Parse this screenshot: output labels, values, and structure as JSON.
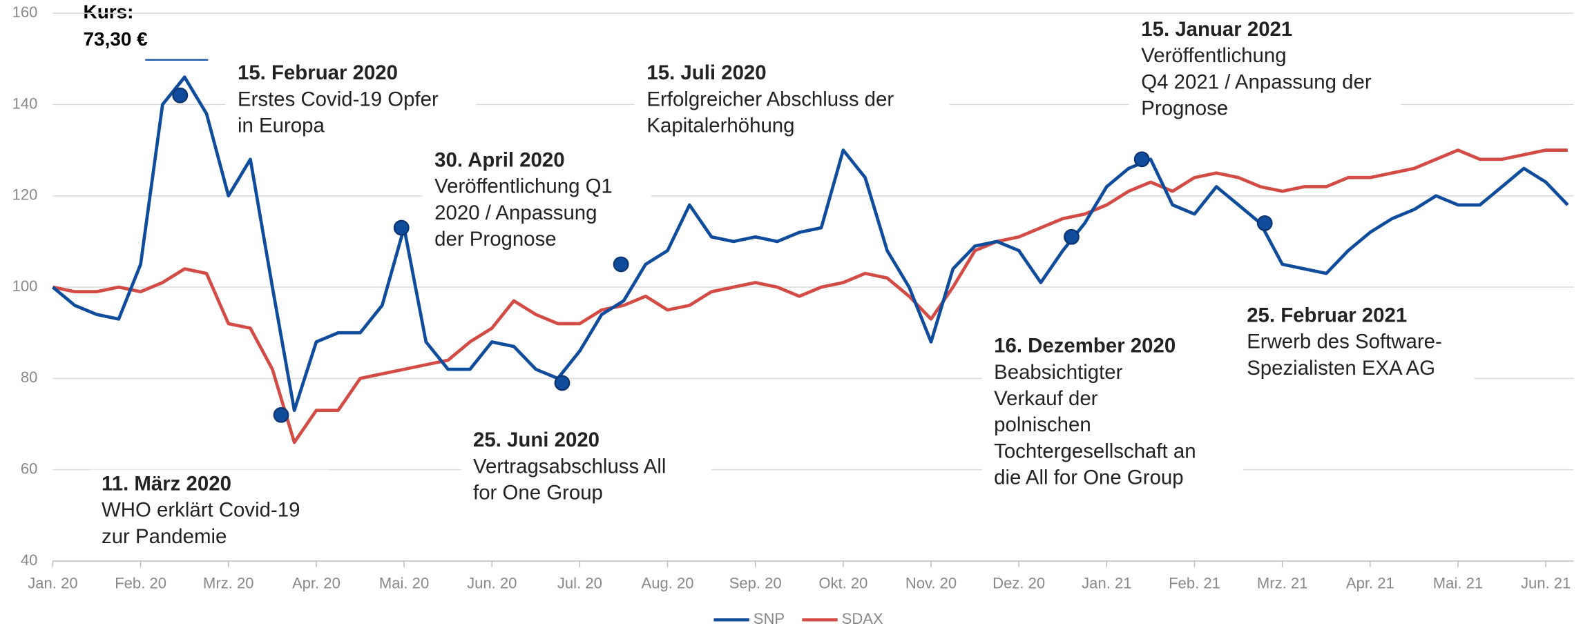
{
  "chart_data": {
    "type": "line",
    "title": "Kurs:",
    "subtitle": "73,30 €",
    "xlim": [
      0,
      17.33
    ],
    "xticks": [
      {
        "value": 0,
        "label": "Jan. 20"
      },
      {
        "value": 1,
        "label": "Feb. 20"
      },
      {
        "value": 2,
        "label": "Mrz. 20"
      },
      {
        "value": 3,
        "label": "Apr. 20"
      },
      {
        "value": 4,
        "label": "Mai. 20"
      },
      {
        "value": 5,
        "label": "Jun. 20"
      },
      {
        "value": 6,
        "label": "Jul. 20"
      },
      {
        "value": 7,
        "label": "Aug. 20"
      },
      {
        "value": 8,
        "label": "Sep. 20"
      },
      {
        "value": 9,
        "label": "Okt. 20"
      },
      {
        "value": 10,
        "label": "Nov. 20"
      },
      {
        "value": 11,
        "label": "Dez. 20"
      },
      {
        "value": 12,
        "label": "Jan. 21"
      },
      {
        "value": 13,
        "label": "Feb. 21"
      },
      {
        "value": 14,
        "label": "Mrz. 21"
      },
      {
        "value": 15,
        "label": "Apr. 21"
      },
      {
        "value": 16,
        "label": "Mai. 21"
      },
      {
        "value": 17,
        "label": "Jun. 21"
      }
    ],
    "ylim": [
      40,
      160
    ],
    "yticks": [
      40,
      60,
      80,
      100,
      120,
      140,
      160
    ],
    "grid": true,
    "legend": "bottom",
    "x": [
      0,
      0.25,
      0.5,
      0.75,
      1,
      1.25,
      1.5,
      1.75,
      2,
      2.25,
      2.5,
      2.75,
      3,
      3.25,
      3.5,
      3.75,
      4,
      4.25,
      4.5,
      4.75,
      5,
      5.25,
      5.5,
      5.75,
      6,
      6.25,
      6.5,
      6.75,
      7,
      7.25,
      7.5,
      7.75,
      8,
      8.25,
      8.5,
      8.75,
      9,
      9.25,
      9.5,
      9.75,
      10,
      10.25,
      10.5,
      10.75,
      11,
      11.25,
      11.5,
      11.75,
      12,
      12.25,
      12.5,
      12.75,
      13,
      13.25,
      13.5,
      13.75,
      14,
      14.25,
      14.5,
      14.75,
      15,
      15.25,
      15.5,
      15.75,
      16,
      16.25,
      16.5,
      16.75,
      17,
      17.25
    ],
    "series": [
      {
        "name": "SNP",
        "color": "#0f4c9c",
        "values": [
          100,
          96,
          94,
          93,
          105,
          140,
          146,
          138,
          120,
          128,
          100,
          73,
          88,
          90,
          90,
          96,
          113,
          88,
          82,
          82,
          88,
          87,
          82,
          80,
          86,
          94,
          97,
          105,
          108,
          118,
          111,
          110,
          111,
          110,
          112,
          113,
          130,
          124,
          108,
          100,
          88,
          104,
          109,
          110,
          108,
          101,
          108,
          114,
          122,
          126,
          128,
          118,
          116,
          122,
          118,
          114,
          105,
          104,
          103,
          108,
          112,
          115,
          117,
          120,
          118,
          118,
          122,
          126,
          123,
          118
        ]
      },
      {
        "name": "SDAX",
        "color": "#d24b45",
        "values": [
          100,
          99,
          99,
          100,
          99,
          101,
          104,
          103,
          92,
          91,
          82,
          66,
          73,
          73,
          80,
          81,
          82,
          83,
          84,
          88,
          91,
          97,
          94,
          92,
          92,
          95,
          96,
          98,
          95,
          96,
          99,
          100,
          101,
          100,
          98,
          100,
          101,
          103,
          102,
          98,
          93,
          100,
          108,
          110,
          111,
          113,
          115,
          116,
          118,
          121,
          123,
          121,
          124,
          125,
          124,
          122,
          121,
          122,
          122,
          124,
          124,
          125,
          126,
          128,
          130,
          128,
          128,
          129,
          130,
          130
        ]
      }
    ],
    "events": [
      {
        "x": 1.45,
        "value": 142,
        "title": "15. Februar 2020",
        "lines": [
          "Erstes Covid-19 Opfer",
          "in Europa"
        ]
      },
      {
        "x": 2.6,
        "value": 72,
        "title": "11. März 2020",
        "lines": [
          "WHO erklärt Covid-19",
          "zur Pandemie"
        ]
      },
      {
        "x": 3.97,
        "value": 113,
        "title": "30. April 2020",
        "lines": [
          "Veröffentlichung Q1",
          "2020 / Anpassung",
          "der Prognose"
        ]
      },
      {
        "x": 5.8,
        "value": 79,
        "title": "25. Juni 2020",
        "lines": [
          "Vertragsabschluss All",
          "for One Group"
        ]
      },
      {
        "x": 6.47,
        "value": 105,
        "title": "15. Juli 2020",
        "lines": [
          "Erfolgreicher Abschluss der",
          "Kapitalerhöhung"
        ]
      },
      {
        "x": 11.6,
        "value": 111,
        "title": "16. Dezember 2020",
        "lines": [
          "Beabsichtigter",
          "Verkauf der",
          "polnischen",
          "Tochtergesellschaft an",
          "die All for One Group"
        ]
      },
      {
        "x": 12.4,
        "value": 128,
        "title": "15. Januar 2021",
        "lines": [
          "Veröffentlichung",
          "Q4 2021 / Anpassung der",
          "Prognose"
        ]
      },
      {
        "x": 13.8,
        "value": 114,
        "title": "25. Februar 2021",
        "lines": [
          "Erwerb des Software-",
          "Spezialisten EXA AG"
        ]
      }
    ]
  }
}
